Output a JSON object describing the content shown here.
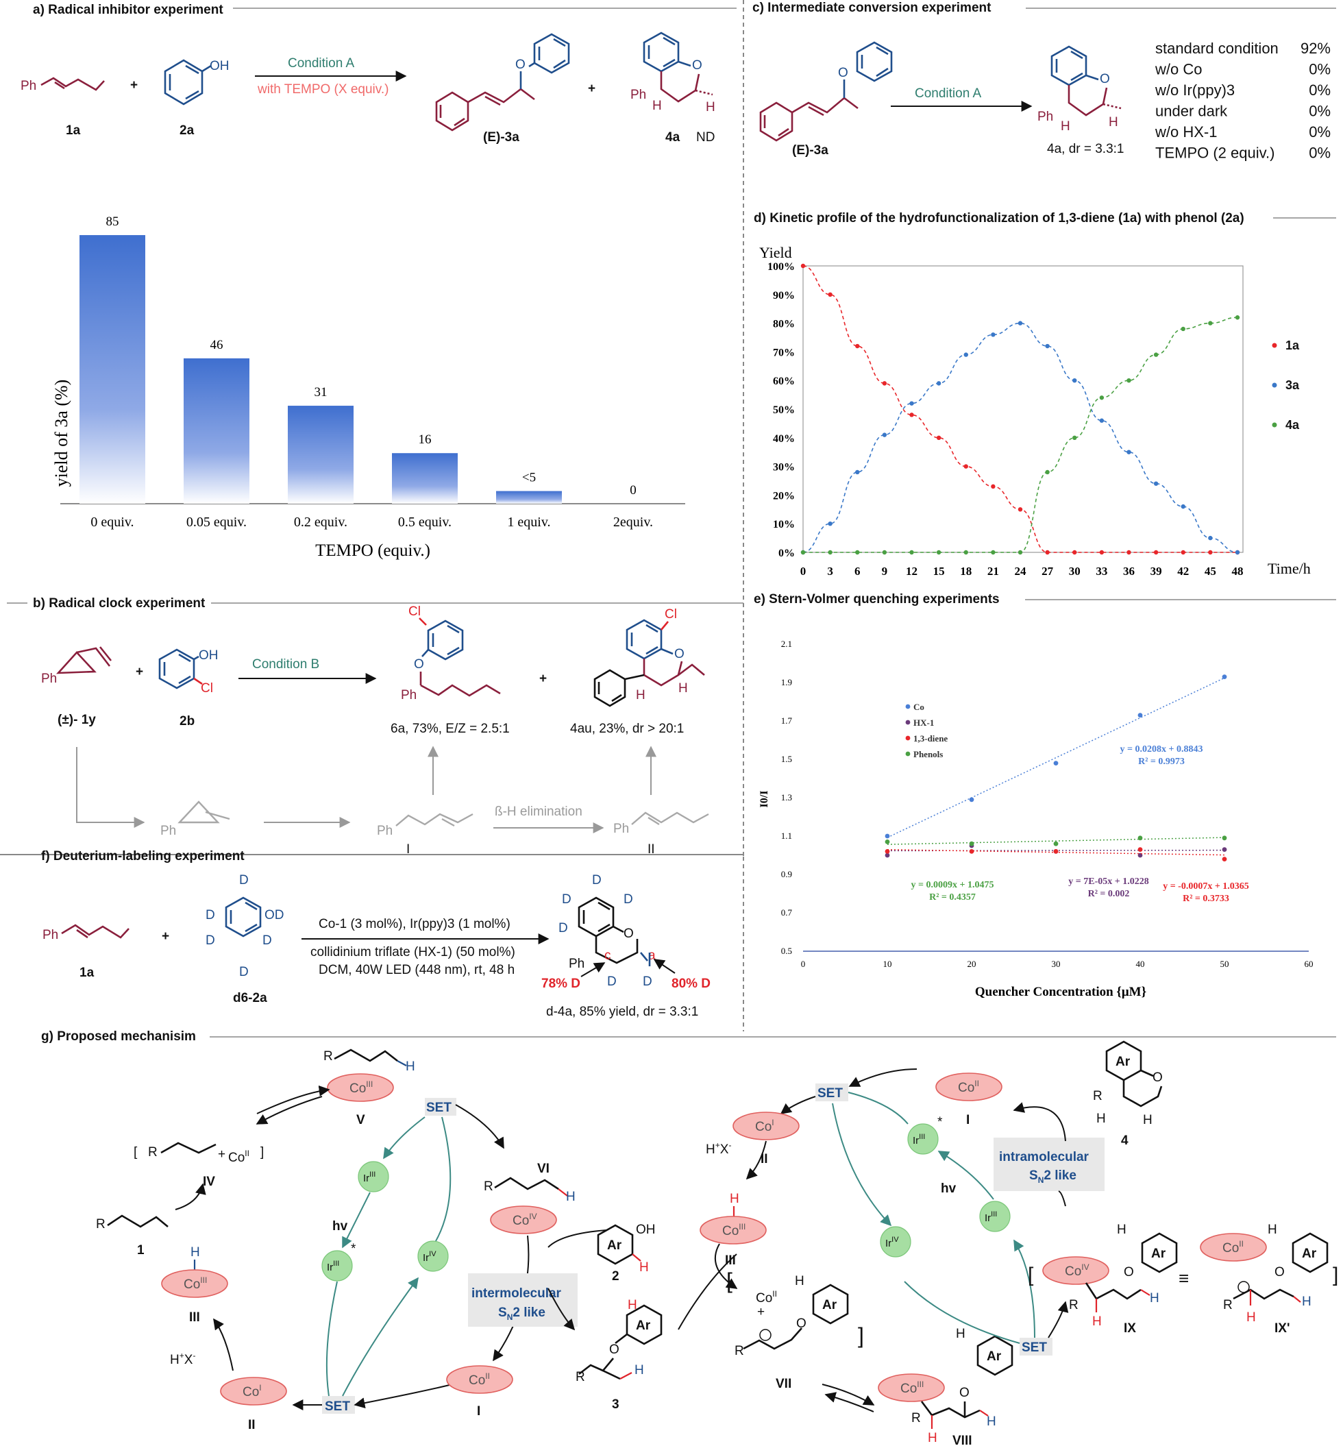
{
  "colors": {
    "maroon": "#8a1f3c",
    "blue": "#1f4e8c",
    "teal": "#2e7d6e",
    "red": "#e0242b",
    "bar": "#3f6fcf",
    "series_1a": "#e8262a",
    "series_3a": "#3a78c8",
    "series_4a": "#4aa043"
  },
  "sections": {
    "a": "a) Radical inhibitor experiment",
    "b": "b) Radical clock experiment",
    "c": "c) Intermediate conversion experiment",
    "d": "d) Kinetic profile of the hydrofunctionalization of 1,3-diene (1a) with phenol (2a)",
    "e": "e) Stern-Volmer quenching experiments",
    "f": "f) Deuterium-labeling experiment",
    "g": "g) Proposed mechanisim"
  },
  "panel_a": {
    "cond1": "Condition A",
    "cond2": "with TEMPO (X equiv.)",
    "lbl_1a": "1a",
    "lbl_2a": "2a",
    "lbl_3a": "(E)-3a",
    "lbl_4a": "4a",
    "nd": "ND"
  },
  "panel_b": {
    "cond": "Condition B",
    "lbl_1y": "(±)- 1y",
    "lbl_2b": "2b",
    "prod1": "6a, 73%, E/Z = 2.5:1",
    "prod2": "4au, 23%, dr > 20:1",
    "step": "ß-H elimination",
    "int1": "I",
    "int2": "II"
  },
  "panel_c": {
    "cond": "Condition A",
    "sm": "(E)-3a",
    "prod": "4a, dr = 3.3:1",
    "rows": [
      {
        "label": "standard condition",
        "value": "92%"
      },
      {
        "label": "w/o Co",
        "value": "0%"
      },
      {
        "label": "w/o Ir(ppy)3",
        "value": "0%"
      },
      {
        "label": "under dark",
        "value": "0%"
      },
      {
        "label": "w/o HX-1",
        "value": "0%"
      },
      {
        "label": "TEMPO (2 equiv.)",
        "value": "0%"
      }
    ]
  },
  "panel_f": {
    "line1": "Co-1 (3 mol%), Ir(ppy)3 (1 mol%)",
    "line2": "collidinium triflate (HX-1) (50 mol%)",
    "line3": "DCM,  40W LED (448 nm), rt, 48 h",
    "lbl_1a": "1a",
    "lbl_2a": "d6-2a",
    "d_c": "78% D",
    "d_a": "80% D",
    "prod": "d-4a, 85% yield, dr = 3.3:1"
  },
  "panel_g": {
    "set": "SET",
    "hv": "hv",
    "intermolecular": "intermolecular",
    "intramolecular": "intramolecular",
    "sn2": "SN2 like"
  },
  "chart_data": [
    {
      "type": "bar",
      "title": "",
      "categories": [
        "0 equiv.",
        "0.05 equiv.",
        "0.2 equiv.",
        "0.5 equiv.",
        "1 equiv.",
        "2equiv."
      ],
      "values": [
        85,
        46,
        31,
        16,
        4,
        0
      ],
      "data_labels": [
        "85",
        "46",
        "31",
        "16",
        "<5",
        "0"
      ],
      "xlabel": "TEMPO (equiv.)",
      "ylabel": "yield of 3a (%)",
      "ylim": [
        0,
        90
      ]
    },
    {
      "type": "scatter",
      "title": "",
      "xlabel": "Time/h",
      "ylabel": "Yield",
      "x": [
        0,
        3,
        6,
        9,
        12,
        15,
        18,
        21,
        24,
        27,
        30,
        33,
        36,
        39,
        42,
        45,
        48
      ],
      "xticks": [
        "0",
        "3",
        "6",
        "9",
        "12",
        "15",
        "18",
        "21",
        "24",
        "27",
        "30",
        "33",
        "36",
        "39",
        "42",
        "45",
        "48"
      ],
      "yticks": [
        "0%",
        "10%",
        "20%",
        "30%",
        "40%",
        "50%",
        "60%",
        "70%",
        "80%",
        "90%",
        "100%"
      ],
      "ylim": [
        0,
        100
      ],
      "series": [
        {
          "name": "1a",
          "values": [
            100,
            90,
            72,
            59,
            48,
            40,
            30,
            23,
            15,
            0,
            0,
            0,
            0,
            0,
            0,
            0,
            0
          ]
        },
        {
          "name": "3a",
          "values": [
            0,
            10,
            28,
            41,
            52,
            59,
            69,
            76,
            80,
            72,
            60,
            46,
            35,
            24,
            16,
            5,
            0
          ]
        },
        {
          "name": "4a",
          "values": [
            0,
            0,
            0,
            0,
            0,
            0,
            0,
            0,
            0,
            28,
            40,
            54,
            60,
            69,
            78,
            80,
            82
          ]
        }
      ],
      "legend": "right"
    },
    {
      "type": "scatter",
      "title": "",
      "xlabel": "Quencher Concentration {μM}",
      "ylabel": "I0/I",
      "xlim": [
        0,
        60
      ],
      "ylim": [
        0.5,
        2.1
      ],
      "xticks": [
        "0",
        "10",
        "20",
        "30",
        "40",
        "50",
        "60"
      ],
      "yticks": [
        "0.5",
        "0.7",
        "0.9",
        "1.1",
        "1.3",
        "1.5",
        "1.7",
        "1.9",
        "2.1"
      ],
      "x": [
        10,
        20,
        30,
        40,
        50
      ],
      "series": [
        {
          "name": "Co",
          "values": [
            1.1,
            1.29,
            1.48,
            1.73,
            1.93
          ],
          "fit": "y = 0.0208x + 0.8843",
          "r2": "R² = 0.9973",
          "slope": 0.0208,
          "intercept": 0.8843
        },
        {
          "name": "HX-1",
          "values": [
            1.0,
            1.05,
            1.02,
            1.0,
            1.03
          ],
          "fit": "y = 7E-05x + 1.0228",
          "r2": "R² = 0.002",
          "slope": 7e-05,
          "intercept": 1.0228
        },
        {
          "name": "1,3-diene",
          "values": [
            1.02,
            1.02,
            1.02,
            1.03,
            0.98
          ],
          "fit": "y = -0.0007x + 1.0365",
          "r2": "R² = 0.3733",
          "slope": -0.0007,
          "intercept": 1.0365
        },
        {
          "name": "Phenols",
          "values": [
            1.07,
            1.06,
            1.06,
            1.09,
            1.09
          ],
          "fit": "y = 0.0009x + 1.0475",
          "r2": "R² = 0.4357",
          "slope": 0.0009,
          "intercept": 1.0475
        }
      ],
      "legend": "top-left"
    }
  ]
}
